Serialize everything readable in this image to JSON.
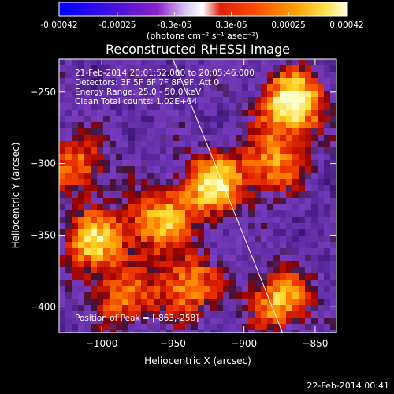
{
  "colorbar": {
    "tick_labels": [
      "-0.00042",
      "-0.00025",
      "-8.3e-05",
      "8.3e-05",
      "0.00025",
      "0.00042"
    ],
    "tick_values": [
      -0.00042,
      -0.00025,
      -8.3e-05,
      8.3e-05,
      0.00025,
      0.00042
    ],
    "unit_label": "(photons cm⁻² s⁻¹ asec⁻²)",
    "range": [
      -0.00042,
      0.00042
    ],
    "colors": [
      "#0000ff",
      "#7a00d0",
      "#ffffff",
      "#ffffff",
      "#c00000",
      "#ff4000",
      "#ff9a00",
      "#ffe040",
      "#ffffd0"
    ]
  },
  "chart_data": {
    "type": "heatmap",
    "title": "Reconstructed RHESSI Image",
    "xlabel": "Heliocentric X (arcsec)",
    "ylabel": "Heliocentric Y (arcsec)",
    "xlim": [
      -1030,
      -835
    ],
    "ylim": [
      -418,
      -227
    ],
    "x_ticks": [
      -1000,
      -950,
      -900,
      -850
    ],
    "x_tick_labels": [
      "−1000",
      "−950",
      "−900",
      "−850"
    ],
    "y_ticks": [
      -250,
      -300,
      -350,
      -400
    ],
    "y_tick_labels": [
      "−250",
      "−300",
      "−350",
      "−400"
    ],
    "annotations": [
      "21-Feb-2014 20:01:52.000 to 20:05:46.000",
      "Detectors: 3F 5F 6F 7F 8F 9F, Att 0",
      "Energy Range: 25.0 - 50.0 keV",
      "Clean     Total counts: 1.02E+04"
    ],
    "peak_label": "Position of Peak = [-863,-258]",
    "peak_position": [
      -863,
      -258
    ],
    "limb_line": [
      [
        -950,
        -227
      ],
      [
        -873,
        -418
      ]
    ],
    "hotspots": [
      {
        "x": -866,
        "y": -258,
        "peak": 1.0
      },
      {
        "x": -922,
        "y": -315,
        "peak": 0.85
      },
      {
        "x": -880,
        "y": -300,
        "peak": 0.6
      },
      {
        "x": -1005,
        "y": -355,
        "peak": 0.75
      },
      {
        "x": -960,
        "y": -340,
        "peak": 0.7
      },
      {
        "x": -940,
        "y": -385,
        "peak": 0.65
      },
      {
        "x": -875,
        "y": -395,
        "peak": 0.7
      },
      {
        "x": -1018,
        "y": -300,
        "peak": 0.55
      },
      {
        "x": -985,
        "y": -395,
        "peak": 0.5
      }
    ],
    "grid": false
  },
  "footer": {
    "timestamp": "22-Feb-2014 00:41"
  }
}
